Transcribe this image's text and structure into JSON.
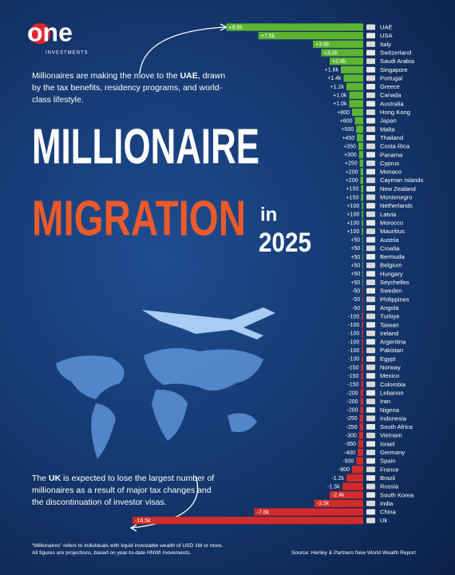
{
  "header": {
    "logo": "one",
    "logo_sub": "INVESTMENTS"
  },
  "intro": {
    "before": "Millionaires are making the move to the ",
    "bold": "UAE",
    "after": ", drawn by the tax benefits, residency programs, and world-class lifestyle."
  },
  "title": {
    "line1": "MILLIONAIRE",
    "line2": "MIGRATION",
    "in": "in",
    "year": "2025"
  },
  "chart_data": {
    "type": "bar",
    "orientation": "horizontal",
    "categories": [
      "UAE",
      "USA",
      "Italy",
      "Switzerland",
      "Saudi Arabia",
      "Singapore",
      "Portugal",
      "Greece",
      "Canada",
      "Australia",
      "Hong Kong",
      "Japan",
      "Malta",
      "Thailand",
      "Costa Rica",
      "Panama",
      "Cyprus",
      "Monaco",
      "Cayman Islands",
      "New Zealand",
      "Montenegro",
      "Netherlands",
      "Latvia",
      "Morocco",
      "Mauritius",
      "Austria",
      "Croatia",
      "Bermuda",
      "Belgium",
      "Hungary",
      "Seychelles",
      "Sweden",
      "Philippines",
      "Angola",
      "Turkiye",
      "Taiwan",
      "Ireland",
      "Argentina",
      "Pakistan",
      "Egypt",
      "Norway",
      "Mexico",
      "Colombia",
      "Lebanon",
      "Iran",
      "Nigeria",
      "Indonesia",
      "South Africa",
      "Vietnam",
      "Israel",
      "Germany",
      "Spain",
      "France",
      "Brazil",
      "Russia",
      "South Korea",
      "India",
      "China",
      "Uk"
    ],
    "values": [
      9800,
      7500,
      3600,
      3000,
      2400,
      1600,
      1400,
      1200,
      1000,
      1000,
      800,
      600,
      500,
      450,
      350,
      300,
      250,
      200,
      200,
      150,
      150,
      100,
      100,
      100,
      100,
      50,
      50,
      50,
      50,
      50,
      50,
      -50,
      -50,
      -50,
      -100,
      -100,
      -100,
      -100,
      -100,
      -100,
      -150,
      -150,
      -150,
      -200,
      -200,
      -200,
      -250,
      -250,
      -300,
      -350,
      -400,
      -500,
      -800,
      -1200,
      -1500,
      -2400,
      -3500,
      -7800,
      -16500
    ],
    "value_labels": [
      "+9.8k",
      "+7.5k",
      "+3.6k",
      "+3.0k",
      "+2.4k",
      "+1.6k",
      "+1.4k",
      "+1.2k",
      "+1.0k",
      "+1.0k",
      "+800",
      "+600",
      "+500",
      "+450",
      "+350",
      "+300",
      "+250",
      "+200",
      "+200",
      "+150",
      "+150",
      "+100",
      "+100",
      "+100",
      "+100",
      "+50",
      "+50",
      "+50",
      "+50",
      "+50",
      "+50",
      "-50",
      "-50",
      "-50",
      "-100",
      "-100",
      "-100",
      "-100",
      "-100",
      "-100",
      "-150",
      "-150",
      "-150",
      "-200",
      "-200",
      "-200",
      "-250",
      "-250",
      "-300",
      "-350",
      "-400",
      "-500",
      "-800",
      "-1.2k",
      "-1.5k",
      "-2.4k",
      "-3.5k",
      "-7.8k",
      "-16.5k"
    ],
    "colors": {
      "positive": "#5cb531",
      "negative": "#d42a2a"
    }
  },
  "outro": {
    "before": "The ",
    "bold": "UK",
    "after": " is expected to lose the largest number of millionaires as a result of major tax changes and the discontinuation of investor visas."
  },
  "footnote": [
    "“Millionaires” refers to individuals with liquid investable wealth of USD 1M or more.",
    "All figures are projections, based on year-to-date HNWI movements."
  ],
  "source": "Source: Henley & Partners New World Wealth Report"
}
